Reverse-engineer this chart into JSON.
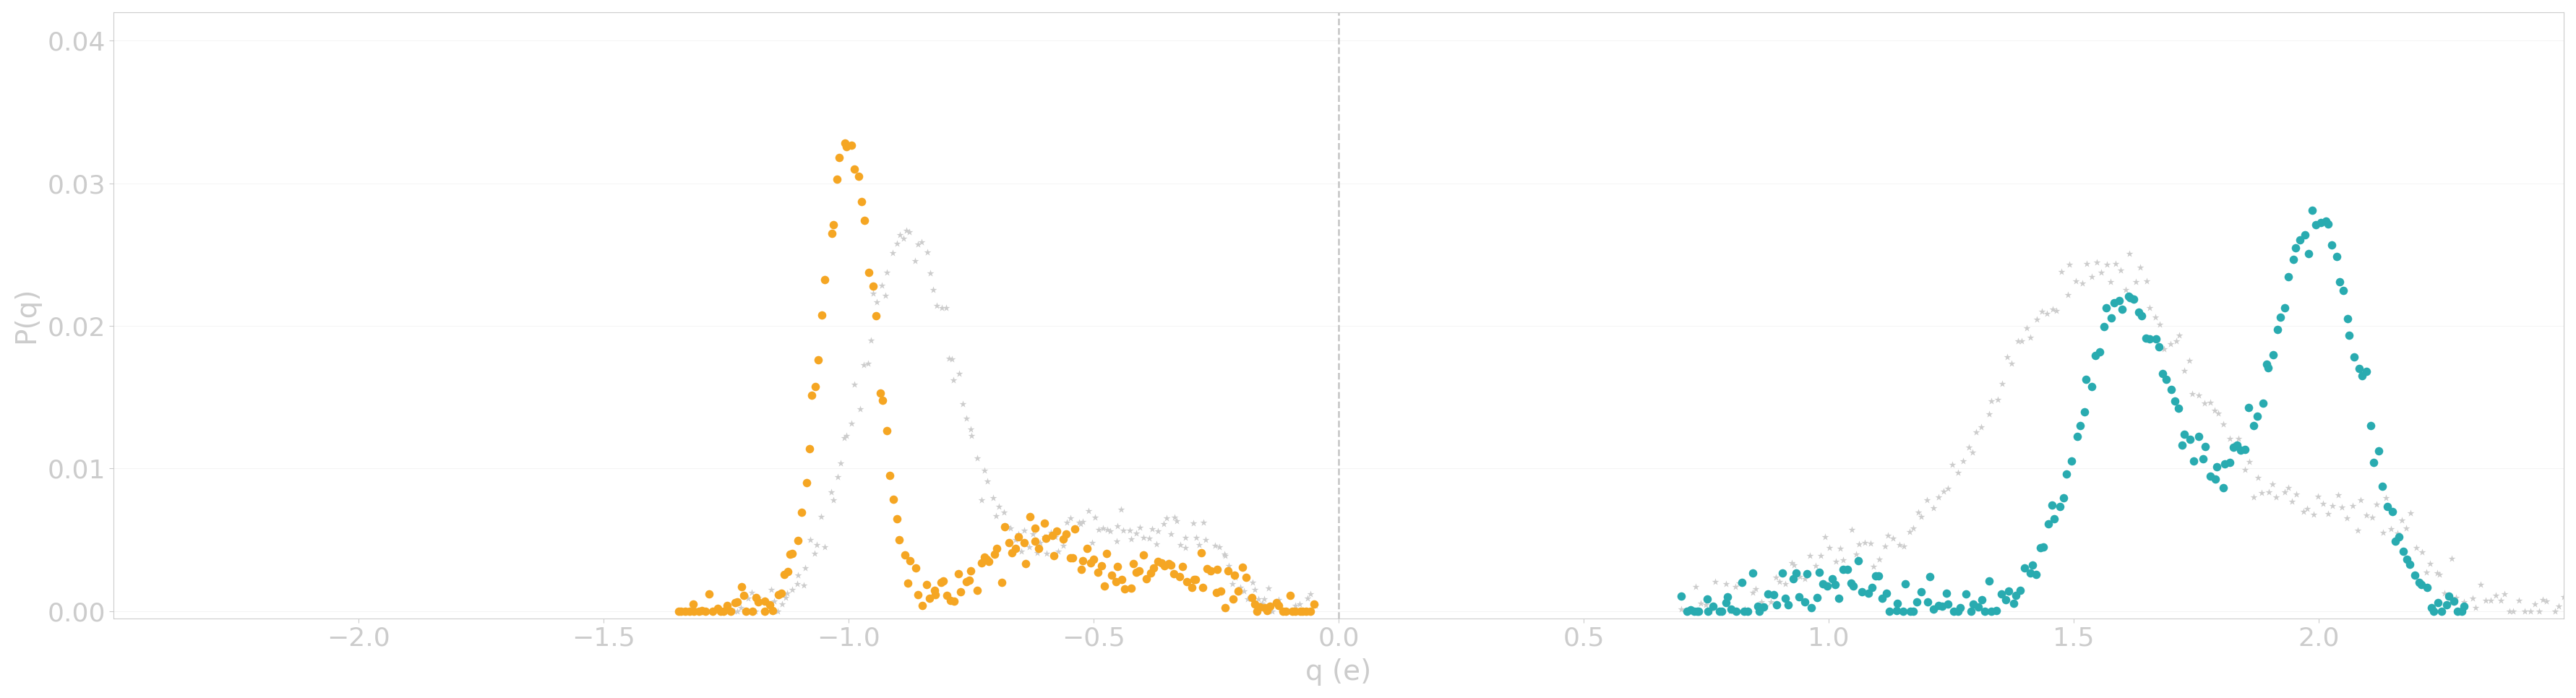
{
  "title": "",
  "xlabel": "q (e)",
  "ylabel": "P(q)",
  "xlim": [
    -2.5,
    2.5
  ],
  "ylim": [
    -0.0005,
    0.042
  ],
  "yticks": [
    0.0,
    0.01,
    0.02,
    0.03,
    0.04
  ],
  "xticks": [
    -2.0,
    -1.5,
    -1.0,
    -0.5,
    0.0,
    0.5,
    1.0,
    1.5,
    2.0
  ],
  "vline_x": 0.0,
  "background_color": "#ffffff",
  "spine_color": "#cccccc",
  "tick_color": "#cccccc",
  "label_color": "#cccccc",
  "orange_color": "#f5a623",
  "teal_color": "#29abb0",
  "gray_color": "#cccccc",
  "dot_size_colored": 70,
  "dot_size_gray": 55,
  "n_bins": 120
}
